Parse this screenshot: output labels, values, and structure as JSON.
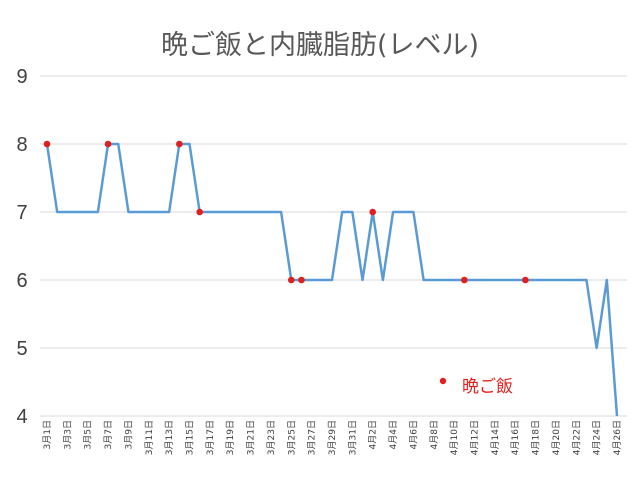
{
  "chart_data": {
    "type": "line",
    "title": "晩ご飯と内臓脂肪(レベル)",
    "xlabel": "",
    "ylabel": "",
    "ylim": [
      4,
      9
    ],
    "yticks": [
      "4",
      "5",
      "6",
      "7",
      "8",
      "9"
    ],
    "grid": true,
    "legend_position": "bottom-right (inside plot)",
    "x": [
      "3月1日",
      "3月2日",
      "3月3日",
      "3月4日",
      "3月5日",
      "3月6日",
      "3月7日",
      "3月8日",
      "3月9日",
      "3月10日",
      "3月11日",
      "3月12日",
      "3月13日",
      "3月14日",
      "3月15日",
      "3月16日",
      "3月17日",
      "3月18日",
      "3月19日",
      "3月20日",
      "3月21日",
      "3月22日",
      "3月23日",
      "3月24日",
      "3月25日",
      "3月26日",
      "3月27日",
      "3月28日",
      "3月29日",
      "3月30日",
      "3月31日",
      "4月1日",
      "4月2日",
      "4月3日",
      "4月4日",
      "4月5日",
      "4月6日",
      "4月7日",
      "4月8日",
      "4月9日",
      "4月10日",
      "4月11日",
      "4月12日",
      "4月13日",
      "4月14日",
      "4月15日",
      "4月16日",
      "4月17日",
      "4月18日",
      "4月19日",
      "4月20日",
      "4月21日",
      "4月22日",
      "4月23日",
      "4月24日",
      "4月25日",
      "4月26日"
    ],
    "x_tick_labels": [
      "3月1日",
      "3月3日",
      "3月5日",
      "3月7日",
      "3月9日",
      "3月11日",
      "3月13日",
      "3月15日",
      "3月17日",
      "3月19日",
      "3月21日",
      "3月23日",
      "3月25日",
      "3月27日",
      "3月29日",
      "3月31日",
      "4月2日",
      "4月4日",
      "4月6日",
      "4月8日",
      "4月10日",
      "4月12日",
      "4月14日",
      "4月16日",
      "4月18日",
      "4月20日",
      "4月22日",
      "4月24日",
      "4月26日"
    ],
    "series": [
      {
        "values": [
          8,
          7,
          7,
          7,
          7,
          7,
          8,
          8,
          7,
          7,
          7,
          7,
          7,
          8,
          8,
          7,
          7,
          7,
          7,
          7,
          7,
          7,
          7,
          7,
          6,
          6,
          6,
          6,
          6,
          7,
          7,
          6,
          7,
          6,
          7,
          7,
          7,
          6,
          6,
          6,
          6,
          6,
          6,
          6,
          6,
          6,
          6,
          6,
          6,
          6,
          6,
          6,
          6,
          6,
          5,
          6,
          4
        ],
        "color": "#5B9BD5"
      },
      {
        "name": "晩ご飯",
        "type": "scatter",
        "color": "#E02020",
        "points": [
          {
            "x": "3月1日",
            "y": 8
          },
          {
            "x": "3月7日",
            "y": 8
          },
          {
            "x": "3月14日",
            "y": 8
          },
          {
            "x": "3月16日",
            "y": 7
          },
          {
            "x": "3月25日",
            "y": 6
          },
          {
            "x": "3月26日",
            "y": 6
          },
          {
            "x": "4月2日",
            "y": 7
          },
          {
            "x": "4月11日",
            "y": 6
          },
          {
            "x": "4月17日",
            "y": 6
          }
        ]
      }
    ]
  },
  "colors": {
    "title": "#595959",
    "gridline": "#D9D9D9",
    "axis_text": "#404040",
    "legend_text": "#E02020"
  }
}
